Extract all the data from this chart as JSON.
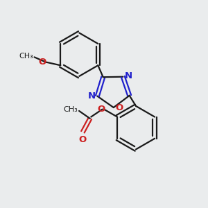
{
  "bg_color": "#eaeced",
  "bond_color": "#1a1a1a",
  "n_color": "#2020cc",
  "o_color": "#cc2020",
  "line_width": 1.6,
  "font_size": 9.5,
  "xlim": [
    0,
    10
  ],
  "ylim": [
    0,
    10
  ]
}
